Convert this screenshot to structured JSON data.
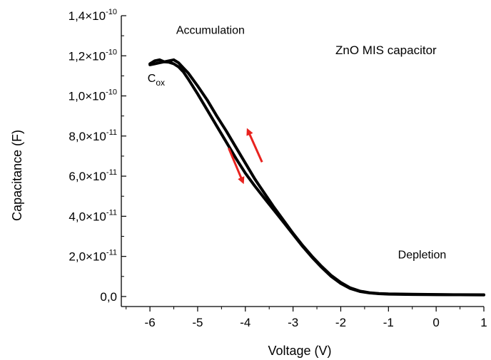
{
  "chart_data": {
    "type": "line",
    "title": "ZnO MIS capacitor",
    "xlabel": "Voltage (V)",
    "ylabel": "Capacitance (F)",
    "xlim": [
      -6.6,
      1.0
    ],
    "ylim": [
      -5e-12,
      1.4e-10
    ],
    "grid": false,
    "x_ticks": [
      -6,
      -5,
      -4,
      -3,
      -2,
      -1,
      0,
      1
    ],
    "x_tick_labels": [
      "-6",
      "-5",
      "-4",
      "-3",
      "-2",
      "-1",
      "0",
      "1"
    ],
    "y_ticks": [
      0,
      2e-11,
      4e-11,
      6e-11,
      8e-11,
      1e-10,
      1.2e-10,
      1.4e-10
    ],
    "y_tick_labels": [
      {
        "mantissa": "0,0",
        "exponent": ""
      },
      {
        "mantissa": "2,0×10",
        "exponent": "-11"
      },
      {
        "mantissa": "4,0×10",
        "exponent": "-11"
      },
      {
        "mantissa": "6,0×10",
        "exponent": "-11"
      },
      {
        "mantissa": "8,0×10",
        "exponent": "-11"
      },
      {
        "mantissa": "1,0×10",
        "exponent": "-10"
      },
      {
        "mantissa": "1,2×10",
        "exponent": "-10"
      },
      {
        "mantissa": "1,4×10",
        "exponent": "-10"
      }
    ],
    "series": [
      {
        "color": "#000000",
        "x": [
          -6.0,
          -5.9,
          -5.8,
          -5.7,
          -5.6,
          -5.5,
          -5.4,
          -5.3,
          -5.2,
          -5.0,
          -4.8,
          -4.6,
          -4.4,
          -4.2,
          -4.0,
          -3.8,
          -3.6,
          -3.4,
          -3.2,
          -3.0,
          -2.8,
          -2.6,
          -2.4,
          -2.2,
          -2.0,
          -1.8,
          -1.6,
          -1.4,
          -1.2,
          -1.0,
          -0.5,
          0.0,
          0.5,
          1.0
        ],
        "y": [
          1.155e-10,
          1.16e-10,
          1.165e-10,
          1.17e-10,
          1.168e-10,
          1.16e-10,
          1.145e-10,
          1.12e-10,
          1.085e-10,
          1.01e-10,
          9.3e-11,
          8.5e-11,
          7.7e-11,
          6.9e-11,
          6.15e-11,
          5.5e-11,
          4.9e-11,
          4.3e-11,
          3.7e-11,
          3.1e-11,
          2.5e-11,
          1.95e-11,
          1.45e-11,
          1e-11,
          6.5e-12,
          4e-12,
          2.5e-12,
          1.8e-12,
          1.4e-12,
          1.2e-12,
          1e-12,
          9e-13,
          8.5e-13,
          8e-13
        ]
      },
      {
        "color": "#000000",
        "x": [
          -6.0,
          -5.9,
          -5.8,
          -5.7,
          -5.6,
          -5.5,
          -5.4,
          -5.3,
          -5.2,
          -5.0,
          -4.8,
          -4.6,
          -4.4,
          -4.2,
          -4.0,
          -3.8,
          -3.6,
          -3.4,
          -3.2,
          -3.0,
          -2.8,
          -2.6,
          -2.4,
          -2.2,
          -2.0,
          -1.8,
          -1.6,
          -1.4,
          -1.2,
          -1.0,
          -0.5,
          0.0,
          0.5,
          1.0
        ],
        "y": [
          1.16e-10,
          1.175e-10,
          1.18e-10,
          1.17e-10,
          1.175e-10,
          1.18e-10,
          1.165e-10,
          1.14e-10,
          1.115e-10,
          1.05e-10,
          9.8e-11,
          9e-11,
          8.25e-11,
          7.45e-11,
          6.65e-11,
          5.85e-11,
          5.15e-11,
          4.45e-11,
          3.8e-11,
          3.15e-11,
          2.55e-11,
          2e-11,
          1.5e-11,
          1.05e-11,
          7e-12,
          4.3e-12,
          2.7e-12,
          1.9e-12,
          1.5e-12,
          1.3e-12,
          1.1e-12,
          1e-12,
          9e-13,
          8.5e-13
        ]
      }
    ],
    "annotations": [
      {
        "text": "Accumulation",
        "x": -5.45,
        "y": 1.31e-10
      },
      {
        "text": "Depletion",
        "x": -0.8,
        "y": 1.9e-11
      }
    ],
    "cox_label": {
      "main": "C",
      "sub": "ox",
      "x": -6.05,
      "y": 1.07e-10
    },
    "arrows": [
      {
        "color": "#e8231f",
        "from": [
          -4.35,
          7.4e-11
        ],
        "to": [
          -4.05,
          5.7e-11
        ]
      },
      {
        "color": "#e8231f",
        "from": [
          -3.65,
          6.7e-11
        ],
        "to": [
          -3.95,
          8.3e-11
        ]
      }
    ]
  }
}
